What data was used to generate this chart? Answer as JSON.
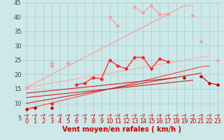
{
  "x": [
    0,
    1,
    2,
    3,
    4,
    5,
    6,
    7,
    8,
    9,
    10,
    11,
    12,
    13,
    14,
    15,
    16,
    17,
    18,
    19,
    20,
    21,
    22,
    23
  ],
  "lines": [
    {
      "name": "pink_jagged_top",
      "color": "#ff9999",
      "linewidth": 0.8,
      "marker": "D",
      "markersize": 2.0,
      "y": [
        null,
        null,
        null,
        24,
        null,
        null,
        null,
        null,
        null,
        null,
        40,
        37,
        null,
        43.5,
        41.5,
        44,
        41,
        41,
        null,
        null,
        40.5,
        null,
        null,
        null
      ]
    },
    {
      "name": "pink_straight_top",
      "color": "#ff9999",
      "linewidth": 0.8,
      "marker": null,
      "markersize": 0,
      "y": [
        15.5,
        17,
        18.5,
        20,
        21.5,
        23,
        24.5,
        26,
        27.5,
        29,
        30.5,
        32,
        33.5,
        35,
        36.5,
        38,
        39.5,
        41,
        42.5,
        44,
        44,
        null,
        null,
        null
      ]
    },
    {
      "name": "pink_mid_jagged",
      "color": "#ff9999",
      "linewidth": 0.8,
      "marker": "D",
      "markersize": 2.0,
      "y": [
        15.5,
        null,
        null,
        23,
        null,
        24,
        null,
        null,
        null,
        null,
        null,
        null,
        null,
        null,
        null,
        null,
        null,
        null,
        null,
        null,
        null,
        31.5,
        null,
        25
      ]
    },
    {
      "name": "pink_lower_straight",
      "color": "#ffaaaa",
      "linewidth": 0.8,
      "marker": null,
      "markersize": 0,
      "y": [
        15.5,
        16.0,
        16.5,
        17.0,
        17.5,
        18.0,
        18.5,
        19.0,
        19.5,
        20.0,
        20.5,
        21.0,
        21.5,
        22.0,
        22.5,
        23.0,
        23.5,
        24.0,
        24.5,
        25.0,
        25.5,
        26.0,
        26.5,
        null
      ]
    },
    {
      "name": "red_jagged_mid",
      "color": "#ff2222",
      "linewidth": 0.9,
      "marker": "D",
      "markersize": 2.0,
      "y": [
        null,
        null,
        null,
        10,
        null,
        null,
        16.5,
        17,
        19,
        18.5,
        25,
        23,
        22,
        26,
        26,
        22,
        25.5,
        24.5,
        null,
        null,
        null,
        null,
        null,
        null
      ]
    },
    {
      "name": "darkred_lower_jagged",
      "color": "#cc0000",
      "linewidth": 0.8,
      "marker": "D",
      "markersize": 2.0,
      "y": [
        8,
        8.5,
        null,
        8.5,
        null,
        null,
        null,
        null,
        null,
        null,
        null,
        null,
        null,
        null,
        null,
        null,
        null,
        null,
        null,
        19,
        null,
        19.5,
        17,
        16.5
      ]
    },
    {
      "name": "red_straight1",
      "color": "#ff4444",
      "linewidth": 0.8,
      "marker": null,
      "markersize": 0,
      "y": [
        8,
        8.7,
        9.4,
        10.1,
        10.8,
        11.5,
        12.2,
        12.9,
        13.6,
        14.3,
        15.0,
        15.7,
        16.4,
        17.1,
        17.8,
        18.5,
        19.2,
        19.9,
        20.6,
        21.3,
        22.0,
        22.7,
        23.0,
        null
      ]
    },
    {
      "name": "red_straight2",
      "color": "#cc2222",
      "linewidth": 0.8,
      "marker": null,
      "markersize": 0,
      "y": [
        10,
        10.5,
        11.0,
        11.5,
        12.0,
        12.5,
        13.0,
        13.5,
        14.0,
        14.5,
        15.0,
        15.5,
        16.0,
        16.5,
        17.0,
        17.5,
        18.0,
        18.5,
        19.0,
        19.5,
        20.0,
        20.5,
        null,
        null
      ]
    },
    {
      "name": "red_straight3",
      "color": "#cc2222",
      "linewidth": 0.8,
      "marker": null,
      "markersize": 0,
      "y": [
        12,
        12.3,
        12.6,
        12.9,
        13.2,
        13.5,
        13.8,
        14.1,
        14.4,
        14.7,
        15.0,
        15.3,
        15.6,
        15.9,
        16.2,
        16.5,
        16.8,
        17.1,
        17.4,
        17.7,
        18.0,
        null,
        null,
        null
      ]
    },
    {
      "name": "red_straight4",
      "color": "#cc2222",
      "linewidth": 0.8,
      "marker": null,
      "markersize": 0,
      "y": [
        13.5,
        13.8,
        14.1,
        14.4,
        14.7,
        15.0,
        15.3,
        15.6,
        15.9,
        16.2,
        16.5,
        16.8,
        17.1,
        17.4,
        17.7,
        18.0,
        18.3,
        18.6,
        18.9,
        null,
        null,
        null,
        null,
        null
      ]
    }
  ],
  "xlabel": "Vent moyen/en rafales ( km/h )",
  "xlim": [
    0,
    23
  ],
  "ylim": [
    5,
    45
  ],
  "yticks": [
    5,
    10,
    15,
    20,
    25,
    30,
    35,
    40,
    45
  ],
  "xticks": [
    0,
    1,
    2,
    3,
    4,
    5,
    6,
    7,
    8,
    9,
    10,
    11,
    12,
    13,
    14,
    15,
    16,
    17,
    18,
    19,
    20,
    21,
    22,
    23
  ],
  "bg_color": "#cce8e8",
  "grid_color": "#aacccc",
  "xlabel_color": "#cc0000",
  "xlabel_fontsize": 7,
  "tick_color": "#cc0000",
  "ytick_color": "#444444",
  "tick_fontsize": 6
}
